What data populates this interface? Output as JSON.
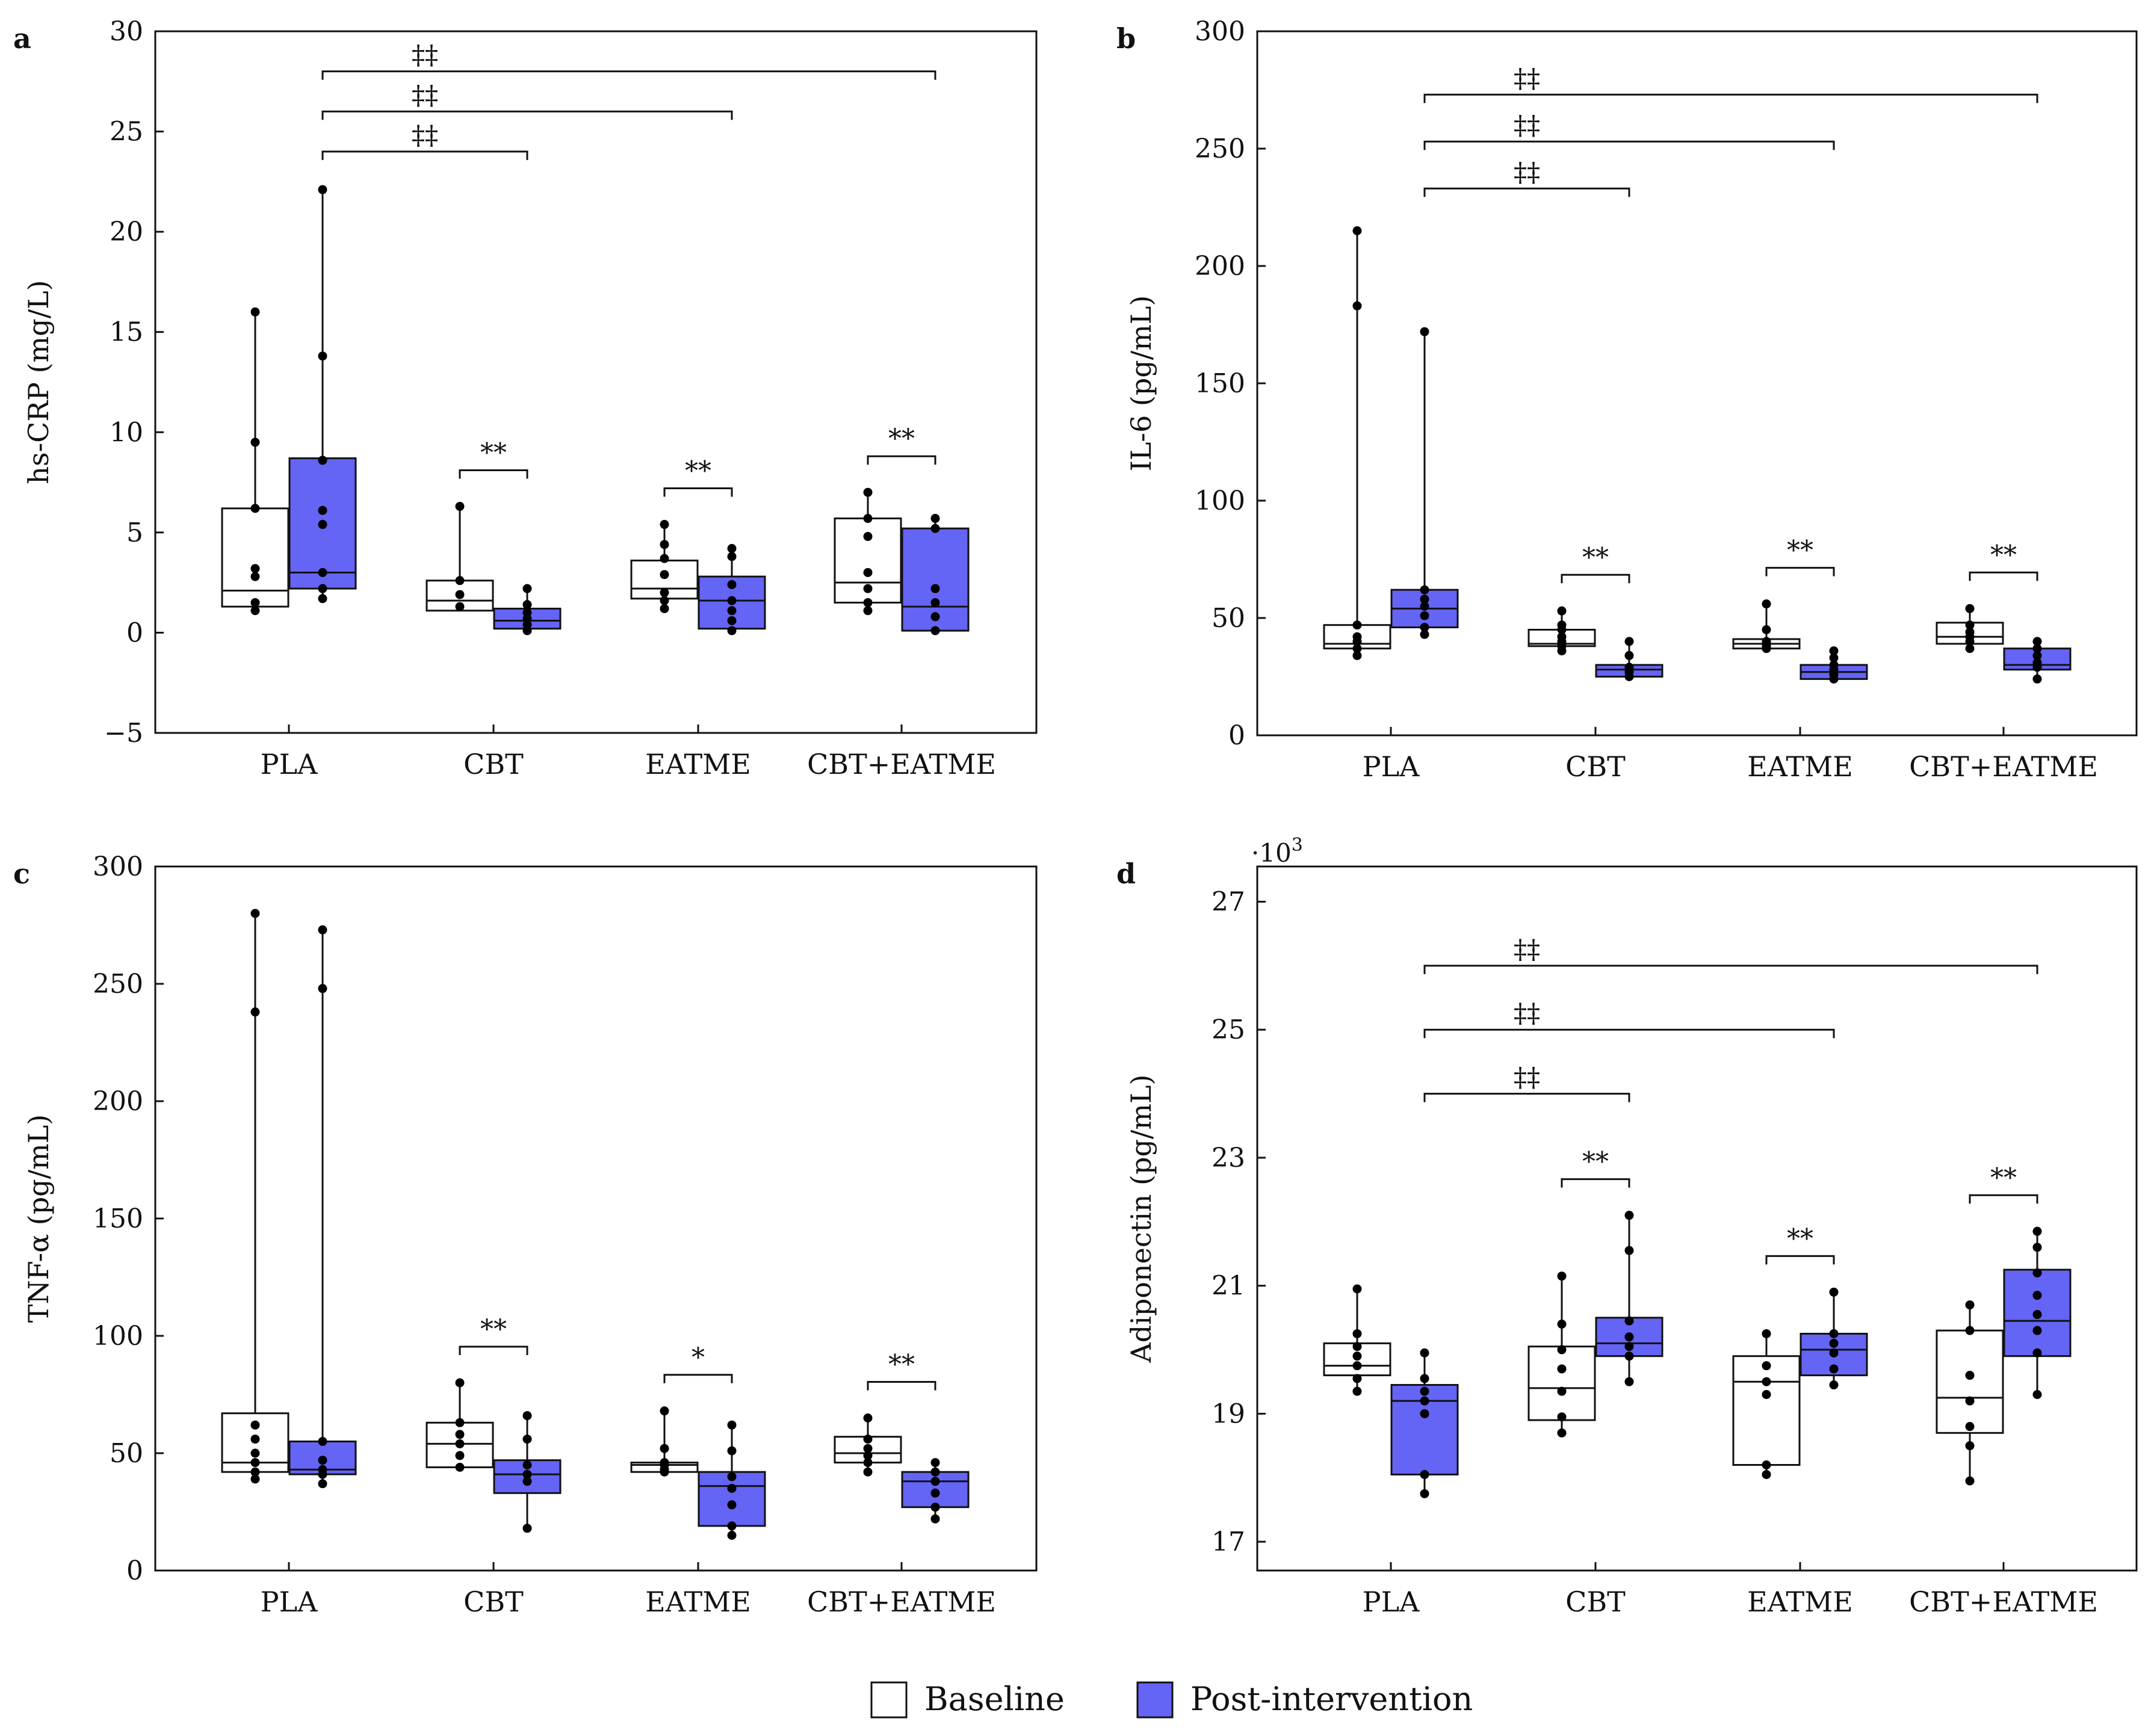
{
  "colors": {
    "baseline_fill": "#ffffff",
    "post_fill": "#6464f5",
    "ink": "#111111"
  },
  "legend": {
    "baseline": "Baseline",
    "post": "Post-intervention"
  },
  "chart_data": [
    {
      "type": "box",
      "panel": "a",
      "ylabel": "hs-CRP (mg/L)",
      "yticks": [
        -5,
        0,
        5,
        10,
        15,
        20,
        25,
        30
      ],
      "ylim": [
        -5,
        30
      ],
      "multiplier": "",
      "categories": [
        "PLA",
        "CBT",
        "EATME",
        "CBT+EATME"
      ],
      "series": [
        {
          "name": "Baseline",
          "boxes": [
            {
              "min": 1.1,
              "q1": 1.3,
              "median": 2.1,
              "q3": 6.2,
              "max": 16.0,
              "points": [
                1.1,
                1.5,
                2.8,
                3.2,
                6.2,
                9.5,
                16.0
              ]
            },
            {
              "min": 1.1,
              "q1": 1.1,
              "median": 1.6,
              "q3": 2.6,
              "max": 6.3,
              "points": [
                1.3,
                1.9,
                2.6,
                6.3
              ]
            },
            {
              "min": 1.2,
              "q1": 1.7,
              "median": 2.2,
              "q3": 3.6,
              "max": 5.4,
              "points": [
                1.2,
                1.6,
                2.0,
                2.9,
                3.7,
                4.4,
                5.4
              ]
            },
            {
              "min": 1.1,
              "q1": 1.5,
              "median": 2.5,
              "q3": 5.7,
              "max": 7.0,
              "points": [
                1.1,
                1.5,
                2.2,
                3.0,
                4.8,
                5.7,
                7.0
              ]
            }
          ]
        },
        {
          "name": "Post-intervention",
          "boxes": [
            {
              "min": 1.7,
              "q1": 2.2,
              "median": 3.0,
              "q3": 8.7,
              "max": 22.1,
              "points": [
                1.7,
                2.2,
                3.0,
                5.4,
                6.1,
                8.6,
                13.8,
                22.1
              ]
            },
            {
              "min": 0.1,
              "q1": 0.2,
              "median": 0.6,
              "q3": 1.2,
              "max": 2.2,
              "points": [
                0.1,
                0.4,
                0.7,
                1.0,
                1.4,
                2.2
              ]
            },
            {
              "min": 0.1,
              "q1": 0.2,
              "median": 1.6,
              "q3": 2.8,
              "max": 4.4,
              "points": [
                0.1,
                0.6,
                1.1,
                1.6,
                2.4,
                3.8,
                4.2
              ]
            },
            {
              "min": 0.1,
              "q1": 0.1,
              "median": 1.3,
              "q3": 5.2,
              "max": 5.7,
              "points": [
                0.1,
                0.8,
                1.5,
                2.2,
                5.2,
                5.7
              ]
            }
          ]
        }
      ],
      "within_markers": [
        "**",
        "**",
        "**"
      ],
      "between_markers": [
        {
          "label": "‡‡",
          "target": 1,
          "y": 24.0
        },
        {
          "label": "‡‡",
          "target": 2,
          "y": 26.0
        },
        {
          "label": "‡‡",
          "target": 3,
          "y": 28.0
        }
      ]
    },
    {
      "type": "box",
      "panel": "b",
      "ylabel": "IL-6 (pg/mL)",
      "yticks": [
        0,
        50,
        100,
        150,
        200,
        250,
        300
      ],
      "ylim": [
        0,
        300
      ],
      "multiplier": "",
      "categories": [
        "PLA",
        "CBT",
        "EATME",
        "CBT+EATME"
      ],
      "series": [
        {
          "name": "Baseline",
          "boxes": [
            {
              "min": 34,
              "q1": 37,
              "median": 39,
              "q3": 47,
              "max": 215,
              "points": [
                34,
                37,
                40,
                42,
                47,
                183,
                215
              ]
            },
            {
              "min": 36,
              "q1": 38,
              "median": 39,
              "q3": 45,
              "max": 53,
              "points": [
                36,
                38,
                40,
                42,
                45,
                47,
                53
              ]
            },
            {
              "min": 37,
              "q1": 37,
              "median": 39,
              "q3": 41,
              "max": 56,
              "points": [
                37,
                38,
                39,
                40,
                45,
                56
              ]
            },
            {
              "min": 37,
              "q1": 39,
              "median": 42,
              "q3": 48,
              "max": 54,
              "points": [
                37,
                40,
                42,
                44,
                47,
                54
              ]
            }
          ]
        },
        {
          "name": "Post-intervention",
          "boxes": [
            {
              "min": 43,
              "q1": 46,
              "median": 54,
              "q3": 62,
              "max": 172,
              "points": [
                43,
                46,
                51,
                55,
                58,
                62,
                172
              ]
            },
            {
              "min": 25,
              "q1": 25,
              "median": 28,
              "q3": 30,
              "max": 40,
              "points": [
                25,
                27,
                29,
                34,
                40
              ]
            },
            {
              "min": 24,
              "q1": 24,
              "median": 27,
              "q3": 30,
              "max": 36,
              "points": [
                24,
                26,
                28,
                30,
                33,
                36
              ]
            },
            {
              "min": 24,
              "q1": 28,
              "median": 30,
              "q3": 37,
              "max": 40,
              "points": [
                24,
                29,
                31,
                34,
                37,
                40
              ]
            }
          ]
        }
      ],
      "within_markers": [
        "**",
        "**",
        "**"
      ],
      "between_markers": [
        {
          "label": "‡‡",
          "target": 1,
          "y": 233
        },
        {
          "label": "‡‡",
          "target": 2,
          "y": 253
        },
        {
          "label": "‡‡",
          "target": 3,
          "y": 273
        }
      ]
    },
    {
      "type": "box",
      "panel": "c",
      "ylabel": "TNF-α (pg/mL)",
      "yticks": [
        0,
        50,
        100,
        150,
        200,
        250,
        300
      ],
      "ylim": [
        0,
        300
      ],
      "multiplier": "",
      "categories": [
        "PLA",
        "CBT",
        "EATME",
        "CBT+EATME"
      ],
      "series": [
        {
          "name": "Baseline",
          "boxes": [
            {
              "min": 39,
              "q1": 42,
              "median": 46,
              "q3": 67,
              "max": 280,
              "points": [
                39,
                42,
                46,
                50,
                56,
                62,
                238,
                280
              ]
            },
            {
              "min": 44,
              "q1": 44,
              "median": 54,
              "q3": 63,
              "max": 80,
              "points": [
                44,
                49,
                54,
                58,
                63,
                80
              ]
            },
            {
              "min": 42,
              "q1": 42,
              "median": 45,
              "q3": 46,
              "max": 68,
              "points": [
                42,
                43,
                45,
                46,
                52,
                68
              ]
            },
            {
              "min": 42,
              "q1": 46,
              "median": 50,
              "q3": 57,
              "max": 65,
              "points": [
                42,
                46,
                49,
                52,
                56,
                65
              ]
            }
          ]
        },
        {
          "name": "Post-intervention",
          "boxes": [
            {
              "min": 37,
              "q1": 41,
              "median": 43,
              "q3": 55,
              "max": 273,
              "points": [
                37,
                41,
                43,
                47,
                55,
                248,
                273
              ]
            },
            {
              "min": 18,
              "q1": 33,
              "median": 41,
              "q3": 47,
              "max": 66,
              "points": [
                18,
                38,
                41,
                45,
                56,
                66
              ]
            },
            {
              "min": 15,
              "q1": 19,
              "median": 36,
              "q3": 42,
              "max": 62,
              "points": [
                15,
                19,
                28,
                35,
                40,
                51,
                62
              ]
            },
            {
              "min": 22,
              "q1": 27,
              "median": 38,
              "q3": 42,
              "max": 46,
              "points": [
                22,
                27,
                33,
                38,
                42,
                46
              ]
            }
          ]
        }
      ],
      "within_markers": [
        "**",
        "*",
        "**"
      ],
      "between_markers": []
    },
    {
      "type": "box",
      "panel": "d",
      "ylabel": "Adiponectin (pg/mL)",
      "yticks": [
        17,
        19,
        21,
        23,
        25,
        27
      ],
      "ylim": [
        16.55,
        27.55
      ],
      "multiplier": "·10",
      "multiplier_exp": "3",
      "categories": [
        "PLA",
        "CBT",
        "EATME",
        "CBT+EATME"
      ],
      "series": [
        {
          "name": "Baseline",
          "boxes": [
            {
              "min": 19.35,
              "q1": 19.6,
              "median": 19.75,
              "q3": 20.1,
              "max": 20.95,
              "points": [
                19.35,
                19.55,
                19.75,
                19.9,
                20.05,
                20.25,
                20.95
              ]
            },
            {
              "min": 18.7,
              "q1": 18.9,
              "median": 19.4,
              "q3": 20.05,
              "max": 21.15,
              "points": [
                18.7,
                18.95,
                19.35,
                19.7,
                20.0,
                20.4,
                21.15
              ]
            },
            {
              "min": 18.05,
              "q1": 18.2,
              "median": 19.5,
              "q3": 19.9,
              "max": 20.25,
              "points": [
                18.05,
                18.2,
                19.3,
                19.5,
                19.75,
                20.25
              ]
            },
            {
              "min": 17.95,
              "q1": 18.7,
              "median": 19.25,
              "q3": 20.3,
              "max": 20.7,
              "points": [
                17.95,
                18.5,
                18.8,
                19.2,
                19.6,
                20.3,
                20.7
              ]
            }
          ]
        },
        {
          "name": "Post-intervention",
          "boxes": [
            {
              "min": 17.75,
              "q1": 18.05,
              "median": 19.2,
              "q3": 19.45,
              "max": 19.95,
              "points": [
                17.75,
                18.05,
                19.0,
                19.2,
                19.35,
                19.55,
                19.95
              ]
            },
            {
              "min": 19.5,
              "q1": 19.9,
              "median": 20.1,
              "q3": 20.5,
              "max": 22.1,
              "points": [
                19.5,
                19.9,
                20.05,
                20.2,
                20.45,
                21.55,
                22.1
              ]
            },
            {
              "min": 19.45,
              "q1": 19.6,
              "median": 20.0,
              "q3": 20.25,
              "max": 20.9,
              "points": [
                19.45,
                19.7,
                19.95,
                20.1,
                20.25,
                20.9
              ]
            },
            {
              "min": 19.3,
              "q1": 19.9,
              "median": 20.45,
              "q3": 21.25,
              "max": 21.85,
              "points": [
                19.3,
                19.95,
                20.3,
                20.55,
                20.85,
                21.2,
                21.6,
                21.85
              ]
            }
          ]
        }
      ],
      "within_markers": [
        "**",
        "**",
        "**"
      ],
      "between_markers": [
        {
          "label": "‡‡",
          "target": 1,
          "y": 24.0
        },
        {
          "label": "‡‡",
          "target": 2,
          "y": 25.0
        },
        {
          "label": "‡‡",
          "target": 3,
          "y": 26.0
        }
      ]
    }
  ]
}
